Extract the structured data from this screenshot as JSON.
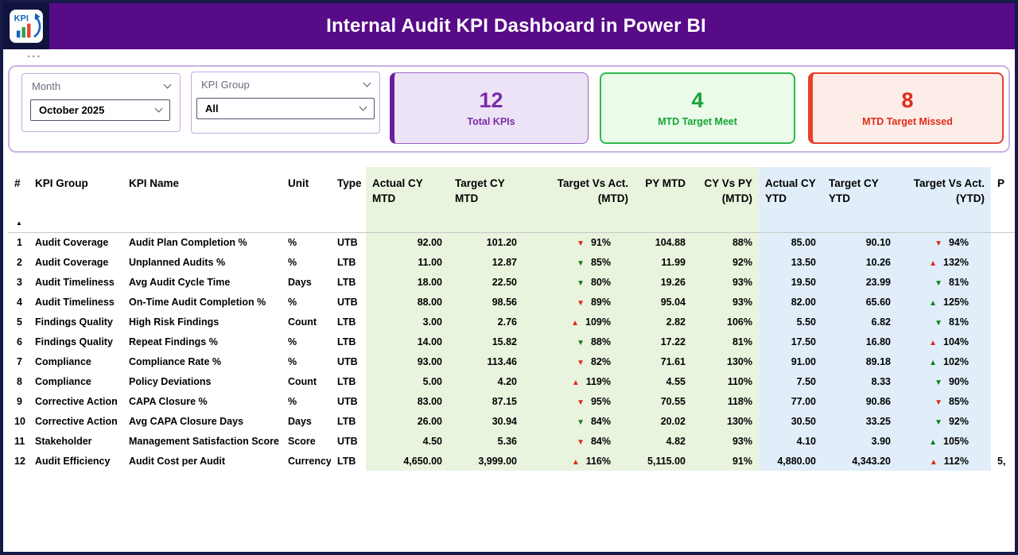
{
  "header": {
    "title": "Internal Audit KPI Dashboard in Power BI"
  },
  "logo": {
    "text": "KPI"
  },
  "more_options": "...",
  "slicers": {
    "month": {
      "label": "Month",
      "value": "October 2025"
    },
    "kpi_group": {
      "label": "KPI Group",
      "value": "All"
    }
  },
  "cards": [
    {
      "value": "12",
      "label": "Total KPIs"
    },
    {
      "value": "4",
      "label": "MTD Target Meet"
    },
    {
      "value": "8",
      "label": "MTD Target Missed"
    }
  ],
  "colors": {
    "theme_purple": "#570B87",
    "card_purple": "#7A2BA8",
    "card_green": "#17A334",
    "card_red": "#E02B1A",
    "good": "#0E7D1F",
    "bad": "#DC2B1C",
    "column_green_bg": "#E9F4DE",
    "column_blue_bg": "#E1EEF9"
  },
  "table": {
    "sort_indicator": "▲",
    "columns": [
      "#",
      "KPI Group",
      "KPI Name",
      "Unit",
      "Type",
      "Actual CY MTD",
      "Target CY MTD",
      "Target Vs Act. (MTD)",
      "PY MTD",
      "CY Vs PY (MTD)",
      "Actual CY YTD",
      "Target CY YTD",
      "Target Vs Act. (YTD)",
      "P"
    ],
    "rows": [
      {
        "num": "1",
        "group": "Audit Coverage",
        "name": "Audit Plan Completion %",
        "unit": "%",
        "type": "UTB",
        "actual_mtd": "92.00",
        "target_mtd": "101.20",
        "tva_mtd": {
          "dir": "down",
          "status": "bad",
          "value": "91%"
        },
        "py_mtd": "104.88",
        "cy_vs_py": "88%",
        "actual_ytd": "85.00",
        "target_ytd": "90.10",
        "tva_ytd": {
          "dir": "down",
          "status": "bad",
          "value": "94%"
        },
        "py_ytd": ""
      },
      {
        "num": "2",
        "group": "Audit Coverage",
        "name": "Unplanned Audits %",
        "unit": "%",
        "type": "LTB",
        "actual_mtd": "11.00",
        "target_mtd": "12.87",
        "tva_mtd": {
          "dir": "down",
          "status": "good",
          "value": "85%"
        },
        "py_mtd": "11.99",
        "cy_vs_py": "92%",
        "actual_ytd": "13.50",
        "target_ytd": "10.26",
        "tva_ytd": {
          "dir": "up",
          "status": "bad",
          "value": "132%"
        },
        "py_ytd": ""
      },
      {
        "num": "3",
        "group": "Audit Timeliness",
        "name": "Avg Audit Cycle Time",
        "unit": "Days",
        "type": "LTB",
        "actual_mtd": "18.00",
        "target_mtd": "22.50",
        "tva_mtd": {
          "dir": "down",
          "status": "good",
          "value": "80%"
        },
        "py_mtd": "19.26",
        "cy_vs_py": "93%",
        "actual_ytd": "19.50",
        "target_ytd": "23.99",
        "tva_ytd": {
          "dir": "down",
          "status": "good",
          "value": "81%"
        },
        "py_ytd": ""
      },
      {
        "num": "4",
        "group": "Audit Timeliness",
        "name": "On-Time Audit Completion %",
        "unit": "%",
        "type": "UTB",
        "actual_mtd": "88.00",
        "target_mtd": "98.56",
        "tva_mtd": {
          "dir": "down",
          "status": "bad",
          "value": "89%"
        },
        "py_mtd": "95.04",
        "cy_vs_py": "93%",
        "actual_ytd": "82.00",
        "target_ytd": "65.60",
        "tva_ytd": {
          "dir": "up",
          "status": "good",
          "value": "125%"
        },
        "py_ytd": ""
      },
      {
        "num": "5",
        "group": "Findings Quality",
        "name": "High Risk Findings",
        "unit": "Count",
        "type": "LTB",
        "actual_mtd": "3.00",
        "target_mtd": "2.76",
        "tva_mtd": {
          "dir": "up",
          "status": "bad",
          "value": "109%"
        },
        "py_mtd": "2.82",
        "cy_vs_py": "106%",
        "actual_ytd": "5.50",
        "target_ytd": "6.82",
        "tva_ytd": {
          "dir": "down",
          "status": "good",
          "value": "81%"
        },
        "py_ytd": ""
      },
      {
        "num": "6",
        "group": "Findings Quality",
        "name": "Repeat Findings %",
        "unit": "%",
        "type": "LTB",
        "actual_mtd": "14.00",
        "target_mtd": "15.82",
        "tva_mtd": {
          "dir": "down",
          "status": "good",
          "value": "88%"
        },
        "py_mtd": "17.22",
        "cy_vs_py": "81%",
        "actual_ytd": "17.50",
        "target_ytd": "16.80",
        "tva_ytd": {
          "dir": "up",
          "status": "bad",
          "value": "104%"
        },
        "py_ytd": ""
      },
      {
        "num": "7",
        "group": "Compliance",
        "name": "Compliance Rate %",
        "unit": "%",
        "type": "UTB",
        "actual_mtd": "93.00",
        "target_mtd": "113.46",
        "tva_mtd": {
          "dir": "down",
          "status": "bad",
          "value": "82%"
        },
        "py_mtd": "71.61",
        "cy_vs_py": "130%",
        "actual_ytd": "91.00",
        "target_ytd": "89.18",
        "tva_ytd": {
          "dir": "up",
          "status": "good",
          "value": "102%"
        },
        "py_ytd": ""
      },
      {
        "num": "8",
        "group": "Compliance",
        "name": "Policy Deviations",
        "unit": "Count",
        "type": "LTB",
        "actual_mtd": "5.00",
        "target_mtd": "4.20",
        "tva_mtd": {
          "dir": "up",
          "status": "bad",
          "value": "119%"
        },
        "py_mtd": "4.55",
        "cy_vs_py": "110%",
        "actual_ytd": "7.50",
        "target_ytd": "8.33",
        "tva_ytd": {
          "dir": "down",
          "status": "good",
          "value": "90%"
        },
        "py_ytd": ""
      },
      {
        "num": "9",
        "group": "Corrective Action",
        "name": "CAPA Closure %",
        "unit": "%",
        "type": "UTB",
        "actual_mtd": "83.00",
        "target_mtd": "87.15",
        "tva_mtd": {
          "dir": "down",
          "status": "bad",
          "value": "95%"
        },
        "py_mtd": "70.55",
        "cy_vs_py": "118%",
        "actual_ytd": "77.00",
        "target_ytd": "90.86",
        "tva_ytd": {
          "dir": "down",
          "status": "bad",
          "value": "85%"
        },
        "py_ytd": ""
      },
      {
        "num": "10",
        "group": "Corrective Action",
        "name": "Avg CAPA Closure Days",
        "unit": "Days",
        "type": "LTB",
        "actual_mtd": "26.00",
        "target_mtd": "30.94",
        "tva_mtd": {
          "dir": "down",
          "status": "good",
          "value": "84%"
        },
        "py_mtd": "20.02",
        "cy_vs_py": "130%",
        "actual_ytd": "30.50",
        "target_ytd": "33.25",
        "tva_ytd": {
          "dir": "down",
          "status": "good",
          "value": "92%"
        },
        "py_ytd": ""
      },
      {
        "num": "11",
        "group": "Stakeholder",
        "name": "Management Satisfaction Score",
        "unit": "Score",
        "type": "UTB",
        "actual_mtd": "4.50",
        "target_mtd": "5.36",
        "tva_mtd": {
          "dir": "down",
          "status": "bad",
          "value": "84%"
        },
        "py_mtd": "4.82",
        "cy_vs_py": "93%",
        "actual_ytd": "4.10",
        "target_ytd": "3.90",
        "tva_ytd": {
          "dir": "up",
          "status": "good",
          "value": "105%"
        },
        "py_ytd": ""
      },
      {
        "num": "12",
        "group": "Audit Efficiency",
        "name": "Audit Cost per Audit",
        "unit": "Currency",
        "type": "LTB",
        "actual_mtd": "4,650.00",
        "target_mtd": "3,999.00",
        "tva_mtd": {
          "dir": "up",
          "status": "bad",
          "value": "116%"
        },
        "py_mtd": "5,115.00",
        "cy_vs_py": "91%",
        "actual_ytd": "4,880.00",
        "target_ytd": "4,343.20",
        "tva_ytd": {
          "dir": "up",
          "status": "bad",
          "value": "112%"
        },
        "py_ytd": "5,"
      }
    ]
  }
}
